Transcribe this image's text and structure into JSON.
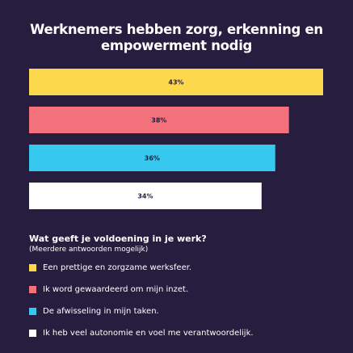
{
  "chart_data": {
    "type": "bar",
    "orientation": "horizontal",
    "title": "Werknemers hebben zorg, erkenning en empowerment nodig",
    "categories": [
      "Een prettige en zorgzame werksfeer.",
      "Ik word gewaardeerd om mijn inzet.",
      "De afwisseling in mijn taken.",
      "Ik heb veel autonomie en voel me verantwoordelijk."
    ],
    "values": [
      43,
      38,
      36,
      34
    ],
    "value_labels": [
      "43%",
      "38%",
      "36%",
      "34%"
    ],
    "colors": [
      "#fcd84c",
      "#f3717a",
      "#36c8ef",
      "#ffffff"
    ],
    "question": "Wat geeft je voldoening in je werk?",
    "subquestion": "(Meerdere antwoorden mogelijk)",
    "grid": false,
    "legend": "bottom"
  }
}
